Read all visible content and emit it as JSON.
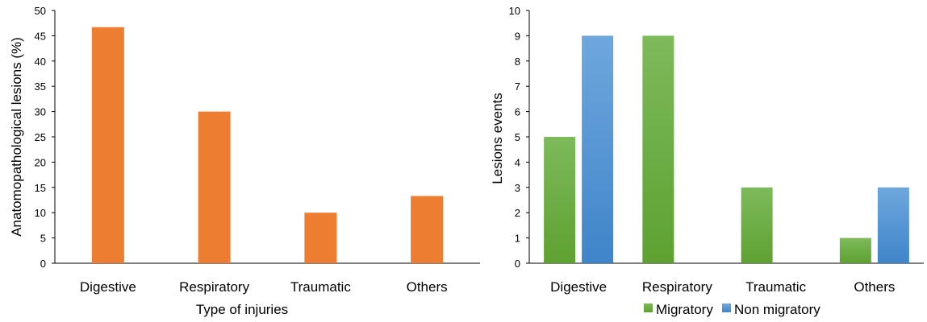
{
  "chart_data": [
    {
      "type": "bar",
      "categories": [
        "Digestive",
        "Respiratory",
        "Traumatic",
        "Others"
      ],
      "series": [
        {
          "values": [
            46.7,
            30.0,
            10.0,
            13.3
          ],
          "color": "#ED7D31"
        }
      ],
      "xlabel": "Type of injuries",
      "ylabel": "Anatomopathological lesions  (%)",
      "ylim": [
        0,
        50
      ],
      "yticks": [
        0,
        5,
        10,
        15,
        20,
        25,
        30,
        35,
        40,
        45,
        50
      ],
      "grid": false,
      "legend": "none"
    },
    {
      "type": "bar",
      "categories": [
        "Digestive",
        "Respiratory",
        "Traumatic",
        "Others"
      ],
      "series": [
        {
          "name": "Migratory",
          "values": [
            5,
            9,
            3,
            1
          ],
          "color": "#70AD47"
        },
        {
          "name": "Non migratory",
          "values": [
            9,
            0,
            0,
            3
          ],
          "color": "#5B9BD5"
        }
      ],
      "xlabel": "",
      "ylabel": "Lesions events",
      "ylim": [
        0,
        10
      ],
      "yticks": [
        0,
        1,
        2,
        3,
        4,
        5,
        6,
        7,
        8,
        9,
        10
      ],
      "grid": false,
      "legend": "bottom"
    }
  ]
}
